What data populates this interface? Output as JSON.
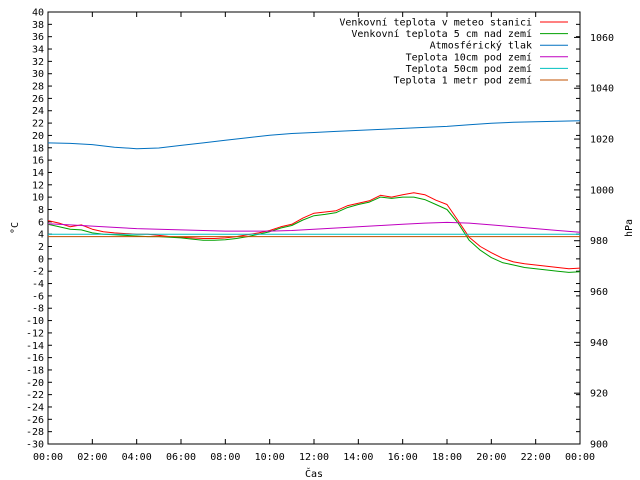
{
  "chart_data": {
    "type": "line",
    "xlabel": "Čas",
    "ylabel_left": "°C",
    "ylabel_right": "hPa",
    "x_ticks": [
      "00:00",
      "02:00",
      "04:00",
      "06:00",
      "08:00",
      "10:00",
      "12:00",
      "14:00",
      "16:00",
      "18:00",
      "20:00",
      "22:00",
      "00:00"
    ],
    "x_range": [
      0,
      24
    ],
    "ylim_left": [
      -30,
      40
    ],
    "ytick_step_left": 2,
    "ylim_right": [
      900,
      1070
    ],
    "y_ticks_right": [
      900,
      920,
      940,
      960,
      980,
      1000,
      1020,
      1040,
      1060
    ],
    "grid": false,
    "legend_position": "top-right",
    "series": [
      {
        "name": "Venkovní teplota v meteo stanici",
        "color": "#ff0000",
        "axis": "left",
        "x": [
          0,
          0.5,
          1,
          1.5,
          2,
          2.5,
          3,
          3.5,
          4,
          4.5,
          5,
          5.5,
          6,
          6.5,
          7,
          7.5,
          8,
          8.5,
          9,
          9.5,
          10,
          10.5,
          11,
          11.5,
          12,
          12.5,
          13,
          13.5,
          14,
          14.5,
          15,
          15.5,
          16,
          16.5,
          17,
          17.5,
          18,
          18.5,
          19,
          19.5,
          20,
          20.5,
          21,
          21.5,
          22,
          22.5,
          23,
          23.5,
          24
        ],
        "y": [
          6.2,
          5.8,
          5.2,
          5.5,
          4.8,
          4.4,
          4.2,
          4.1,
          4.0,
          4.0,
          3.8,
          3.6,
          3.5,
          3.4,
          3.3,
          3.3,
          3.4,
          3.6,
          3.9,
          4.2,
          4.6,
          5.2,
          5.6,
          6.6,
          7.4,
          7.6,
          7.8,
          8.6,
          9.0,
          9.4,
          10.3,
          10.0,
          10.4,
          10.7,
          10.4,
          9.5,
          8.8,
          6.2,
          3.5,
          2.0,
          1.0,
          0.1,
          -0.5,
          -0.8,
          -1.0,
          -1.2,
          -1.4,
          -1.6,
          -1.5
        ]
      },
      {
        "name": "Venkovní teplota 5 cm nad zemí",
        "color": "#00a000",
        "axis": "left",
        "x": [
          0,
          0.5,
          1,
          1.5,
          2,
          2.5,
          3,
          3.5,
          4,
          4.5,
          5,
          5.5,
          6,
          6.5,
          7,
          7.5,
          8,
          8.5,
          9,
          9.5,
          10,
          10.5,
          11,
          11.5,
          12,
          12.5,
          13,
          13.5,
          14,
          14.5,
          15,
          15.5,
          16,
          16.5,
          17,
          17.5,
          18,
          18.5,
          19,
          19.5,
          20,
          20.5,
          21,
          21.5,
          22,
          22.5,
          23,
          23.5,
          24
        ],
        "y": [
          5.6,
          5.2,
          4.8,
          4.7,
          4.2,
          4.0,
          3.9,
          3.8,
          3.7,
          3.6,
          3.6,
          3.5,
          3.4,
          3.2,
          3.0,
          3.0,
          3.1,
          3.3,
          3.6,
          4.0,
          4.4,
          5.0,
          5.4,
          6.3,
          7.0,
          7.2,
          7.5,
          8.3,
          8.8,
          9.2,
          10.0,
          9.8,
          10.0,
          10.0,
          9.6,
          8.8,
          8.0,
          5.8,
          3.0,
          1.4,
          0.2,
          -0.6,
          -1.0,
          -1.4,
          -1.6,
          -1.8,
          -2.0,
          -2.2,
          -2.1
        ]
      },
      {
        "name": "Atmosférický tlak",
        "color": "#0070c0",
        "axis": "right",
        "x": [
          0,
          1,
          2,
          3,
          4,
          5,
          6,
          7,
          8,
          9,
          10,
          11,
          12,
          13,
          14,
          15,
          16,
          17,
          18,
          19,
          20,
          21,
          22,
          23,
          24
        ],
        "y": [
          1018.5,
          1018.3,
          1017.8,
          1016.8,
          1016.2,
          1016.5,
          1017.5,
          1018.5,
          1019.5,
          1020.5,
          1021.5,
          1022.2,
          1022.6,
          1023.0,
          1023.4,
          1023.8,
          1024.2,
          1024.6,
          1025.0,
          1025.6,
          1026.2,
          1026.6,
          1026.8,
          1027.0,
          1027.2
        ]
      },
      {
        "name": "Teplota 10cm pod zemí",
        "color": "#c000c0",
        "axis": "left",
        "x": [
          0,
          1,
          2,
          3,
          4,
          5,
          6,
          7,
          8,
          9,
          10,
          11,
          12,
          13,
          14,
          15,
          16,
          17,
          18,
          19,
          20,
          21,
          22,
          23,
          24
        ],
        "y": [
          5.7,
          5.5,
          5.3,
          5.1,
          4.9,
          4.8,
          4.7,
          4.6,
          4.5,
          4.5,
          4.5,
          4.6,
          4.8,
          5.0,
          5.2,
          5.4,
          5.6,
          5.8,
          5.9,
          5.8,
          5.5,
          5.2,
          4.9,
          4.6,
          4.3
        ]
      },
      {
        "name": "Teplota 50cm pod zemí",
        "color": "#00c0c0",
        "axis": "left",
        "x": [
          0,
          24
        ],
        "y": [
          4.0,
          4.0
        ]
      },
      {
        "name": "Teplota 1 metr pod zemí",
        "color": "#c05000",
        "axis": "left",
        "x": [
          0,
          24
        ],
        "y": [
          3.6,
          3.6
        ]
      }
    ]
  }
}
